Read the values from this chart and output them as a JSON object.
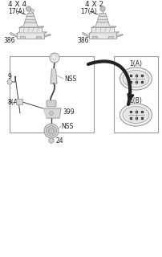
{
  "bg_color": "#ffffff",
  "line_color": "#999999",
  "dark_color": "#444444",
  "black_color": "#222222",
  "title_4x4": "4 X 4",
  "title_4x2": "4 X 2",
  "label_17a_left": "17(A)",
  "label_17a_right": "17(A)",
  "label_386_left": "386",
  "label_386_right": "386",
  "label_nss1": "NSS",
  "label_nss2": "NSS",
  "label_399": "399",
  "label_9": "9",
  "label_8a": "8(A)",
  "label_24": "24",
  "label_1a": "1(A)",
  "label_1b": "1(B)",
  "font_size_title": 6.5,
  "font_size_label": 5.5,
  "fig_width": 2.02,
  "fig_height": 3.2
}
